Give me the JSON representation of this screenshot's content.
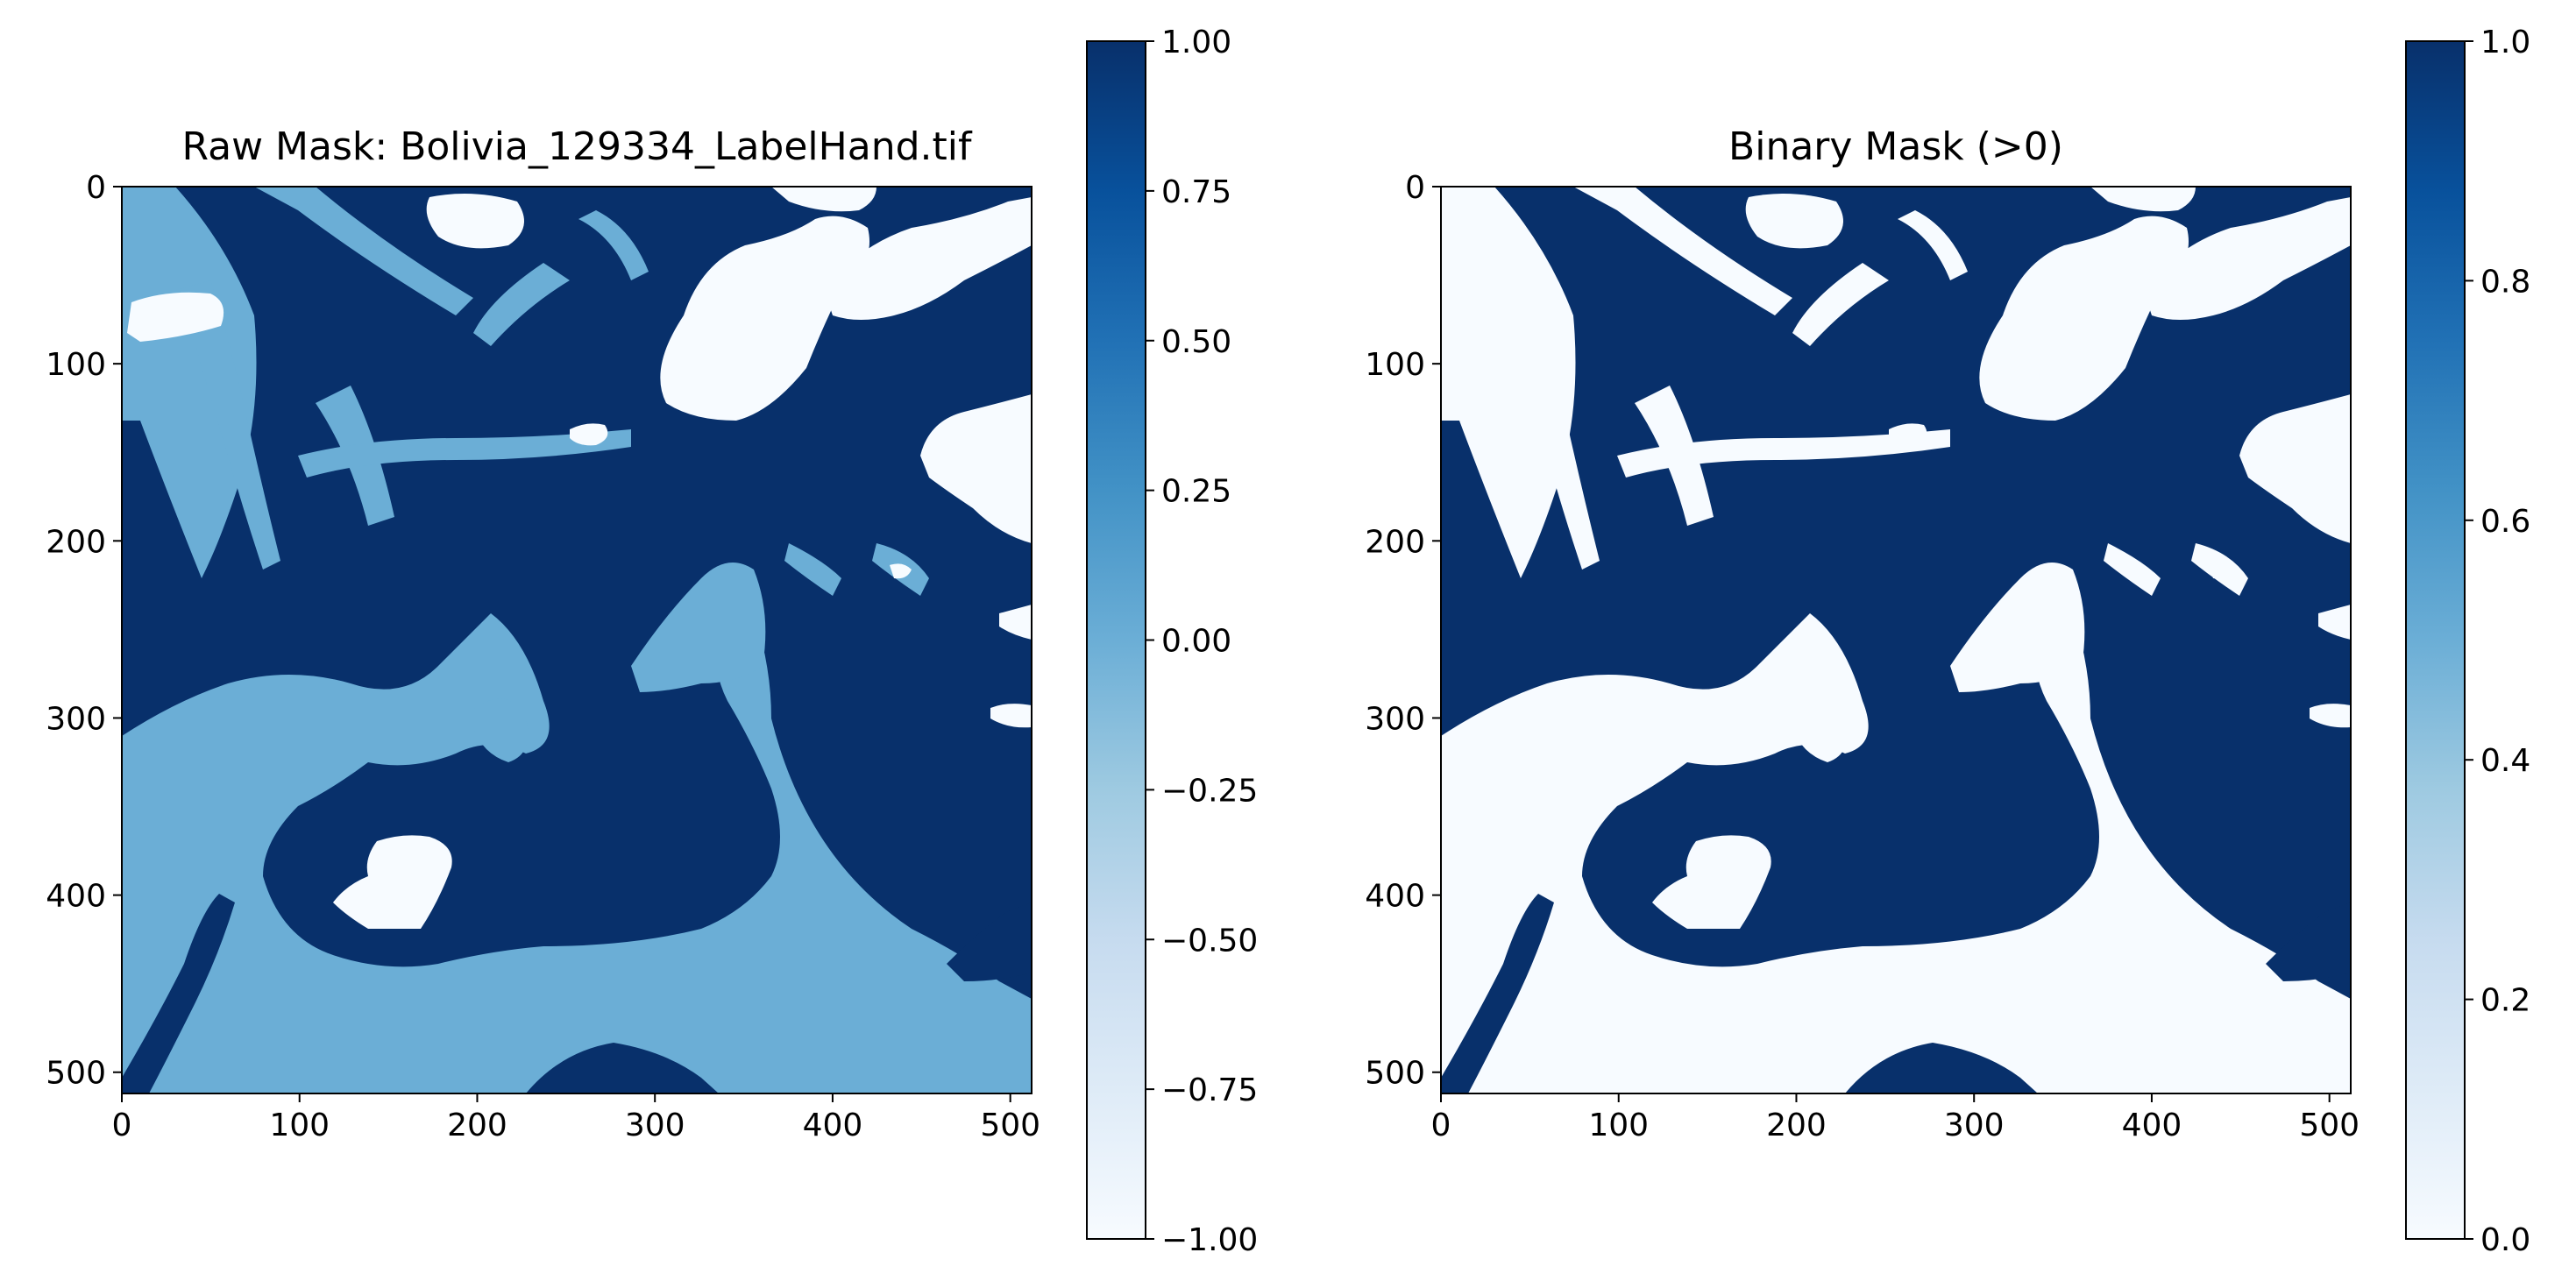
{
  "chart_data": [
    {
      "type": "heatmap",
      "title": "Raw Mask: Bolivia_129334_LabelHand.tif",
      "xlabel": "",
      "ylabel": "",
      "xlim": [
        0,
        512
      ],
      "ylim": [
        512,
        0
      ],
      "x_ticks": [
        "0",
        "100",
        "200",
        "300",
        "400",
        "500"
      ],
      "y_ticks": [
        "0",
        "100",
        "200",
        "300",
        "400",
        "500"
      ],
      "colormap": "Blues",
      "colorbar": {
        "min": -1.0,
        "max": 1.0,
        "ticks": [
          "1.00",
          "0.75",
          "0.50",
          "0.25",
          "0.00",
          "−0.25",
          "−0.50",
          "−0.75",
          "−1.00"
        ],
        "tick_values": [
          1.0,
          0.75,
          0.5,
          0.25,
          0.0,
          -0.25,
          -0.5,
          -0.75,
          -1.0
        ]
      },
      "value_colors": {
        "-1": "#f7fbff",
        "0": "#6baed6",
        "1": "#08306b"
      },
      "grid": false
    },
    {
      "type": "heatmap",
      "title": "Binary Mask (>0)",
      "xlabel": "",
      "ylabel": "",
      "xlim": [
        0,
        512
      ],
      "ylim": [
        512,
        0
      ],
      "x_ticks": [
        "0",
        "100",
        "200",
        "300",
        "400",
        "500"
      ],
      "y_ticks": [
        "0",
        "100",
        "200",
        "300",
        "400",
        "500"
      ],
      "colormap": "Blues",
      "colorbar": {
        "min": 0.0,
        "max": 1.0,
        "ticks": [
          "1.0",
          "0.8",
          "0.6",
          "0.4",
          "0.2",
          "0.0"
        ],
        "tick_values": [
          1.0,
          0.8,
          0.6,
          0.4,
          0.2,
          0.0
        ]
      },
      "value_colors": {
        "0": "#f7fbff",
        "1": "#08306b"
      },
      "grid": false
    }
  ]
}
